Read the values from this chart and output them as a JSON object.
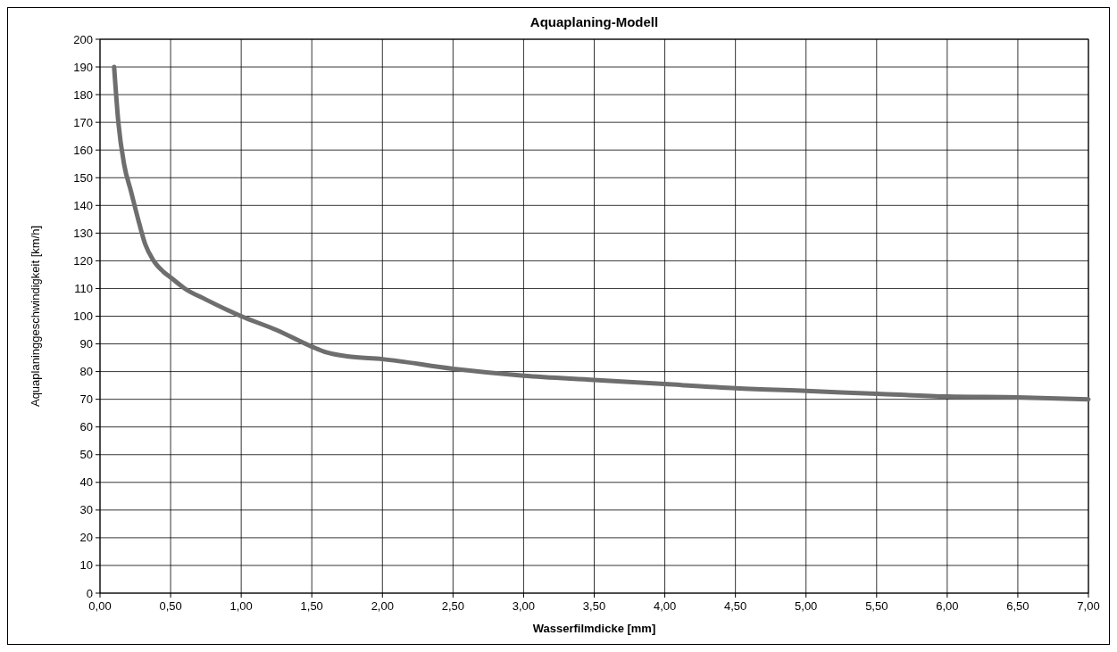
{
  "chart_data": {
    "type": "line",
    "title": "Aquaplaning-Modell",
    "xlabel": "Wasserfilmdicke [mm]",
    "ylabel": "Aquaplaninggeschwindigkeit [km/h]",
    "x": [
      0.1,
      0.13,
      0.17,
      0.22,
      0.27,
      0.32,
      0.38,
      0.45,
      0.5,
      0.6,
      0.75,
      1.0,
      1.25,
      1.5,
      1.6,
      1.75,
      2.0,
      2.5,
      3.0,
      3.5,
      4.0,
      4.5,
      5.0,
      5.5,
      6.0,
      6.5,
      7.0
    ],
    "series": [
      {
        "color": "#6e6e6e",
        "values": [
          190,
          170,
          155,
          145,
          135,
          126,
          120,
          116,
          114,
          110,
          106,
          100,
          95,
          89,
          87,
          85.5,
          84.5,
          81,
          78.5,
          77,
          75.5,
          74,
          73,
          72,
          71,
          70.7,
          70
        ]
      }
    ],
    "xlim": [
      0,
      7
    ],
    "ylim": [
      0,
      200
    ],
    "xticks": [
      {
        "value": 0,
        "label": "0,00"
      },
      {
        "value": 0.5,
        "label": "0,50"
      },
      {
        "value": 1,
        "label": "1,00"
      },
      {
        "value": 1.5,
        "label": "1,50"
      },
      {
        "value": 2,
        "label": "2,00"
      },
      {
        "value": 2.5,
        "label": "2,50"
      },
      {
        "value": 3,
        "label": "3,00"
      },
      {
        "value": 3.5,
        "label": "3,50"
      },
      {
        "value": 4,
        "label": "4,00"
      },
      {
        "value": 4.5,
        "label": "4,50"
      },
      {
        "value": 5,
        "label": "5,00"
      },
      {
        "value": 5.5,
        "label": "5,50"
      },
      {
        "value": 6,
        "label": "6,00"
      },
      {
        "value": 6.5,
        "label": "6,50"
      },
      {
        "value": 7,
        "label": "7,00"
      }
    ],
    "yticks": [
      0,
      10,
      20,
      30,
      40,
      50,
      60,
      70,
      80,
      90,
      100,
      110,
      120,
      130,
      140,
      150,
      160,
      170,
      180,
      190,
      200
    ],
    "grid": true,
    "marker": "none",
    "line_style": "solid"
  }
}
